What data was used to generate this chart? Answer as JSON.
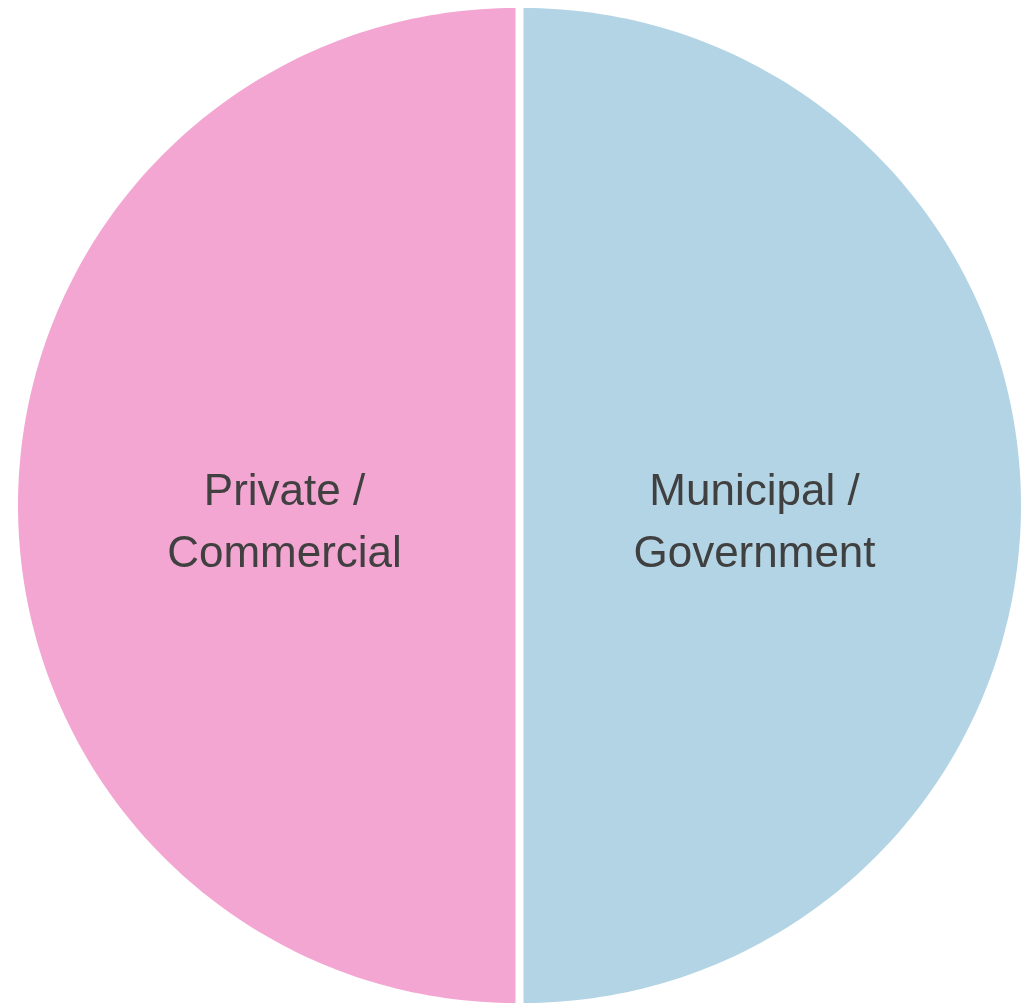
{
  "chart_data": {
    "type": "pie",
    "categories": [
      "Municipal /\nGovernment",
      "Private /\nCommercial"
    ],
    "values": [
      50,
      50
    ],
    "colors": [
      "#b3d4e5",
      "#f4a6d3"
    ]
  }
}
